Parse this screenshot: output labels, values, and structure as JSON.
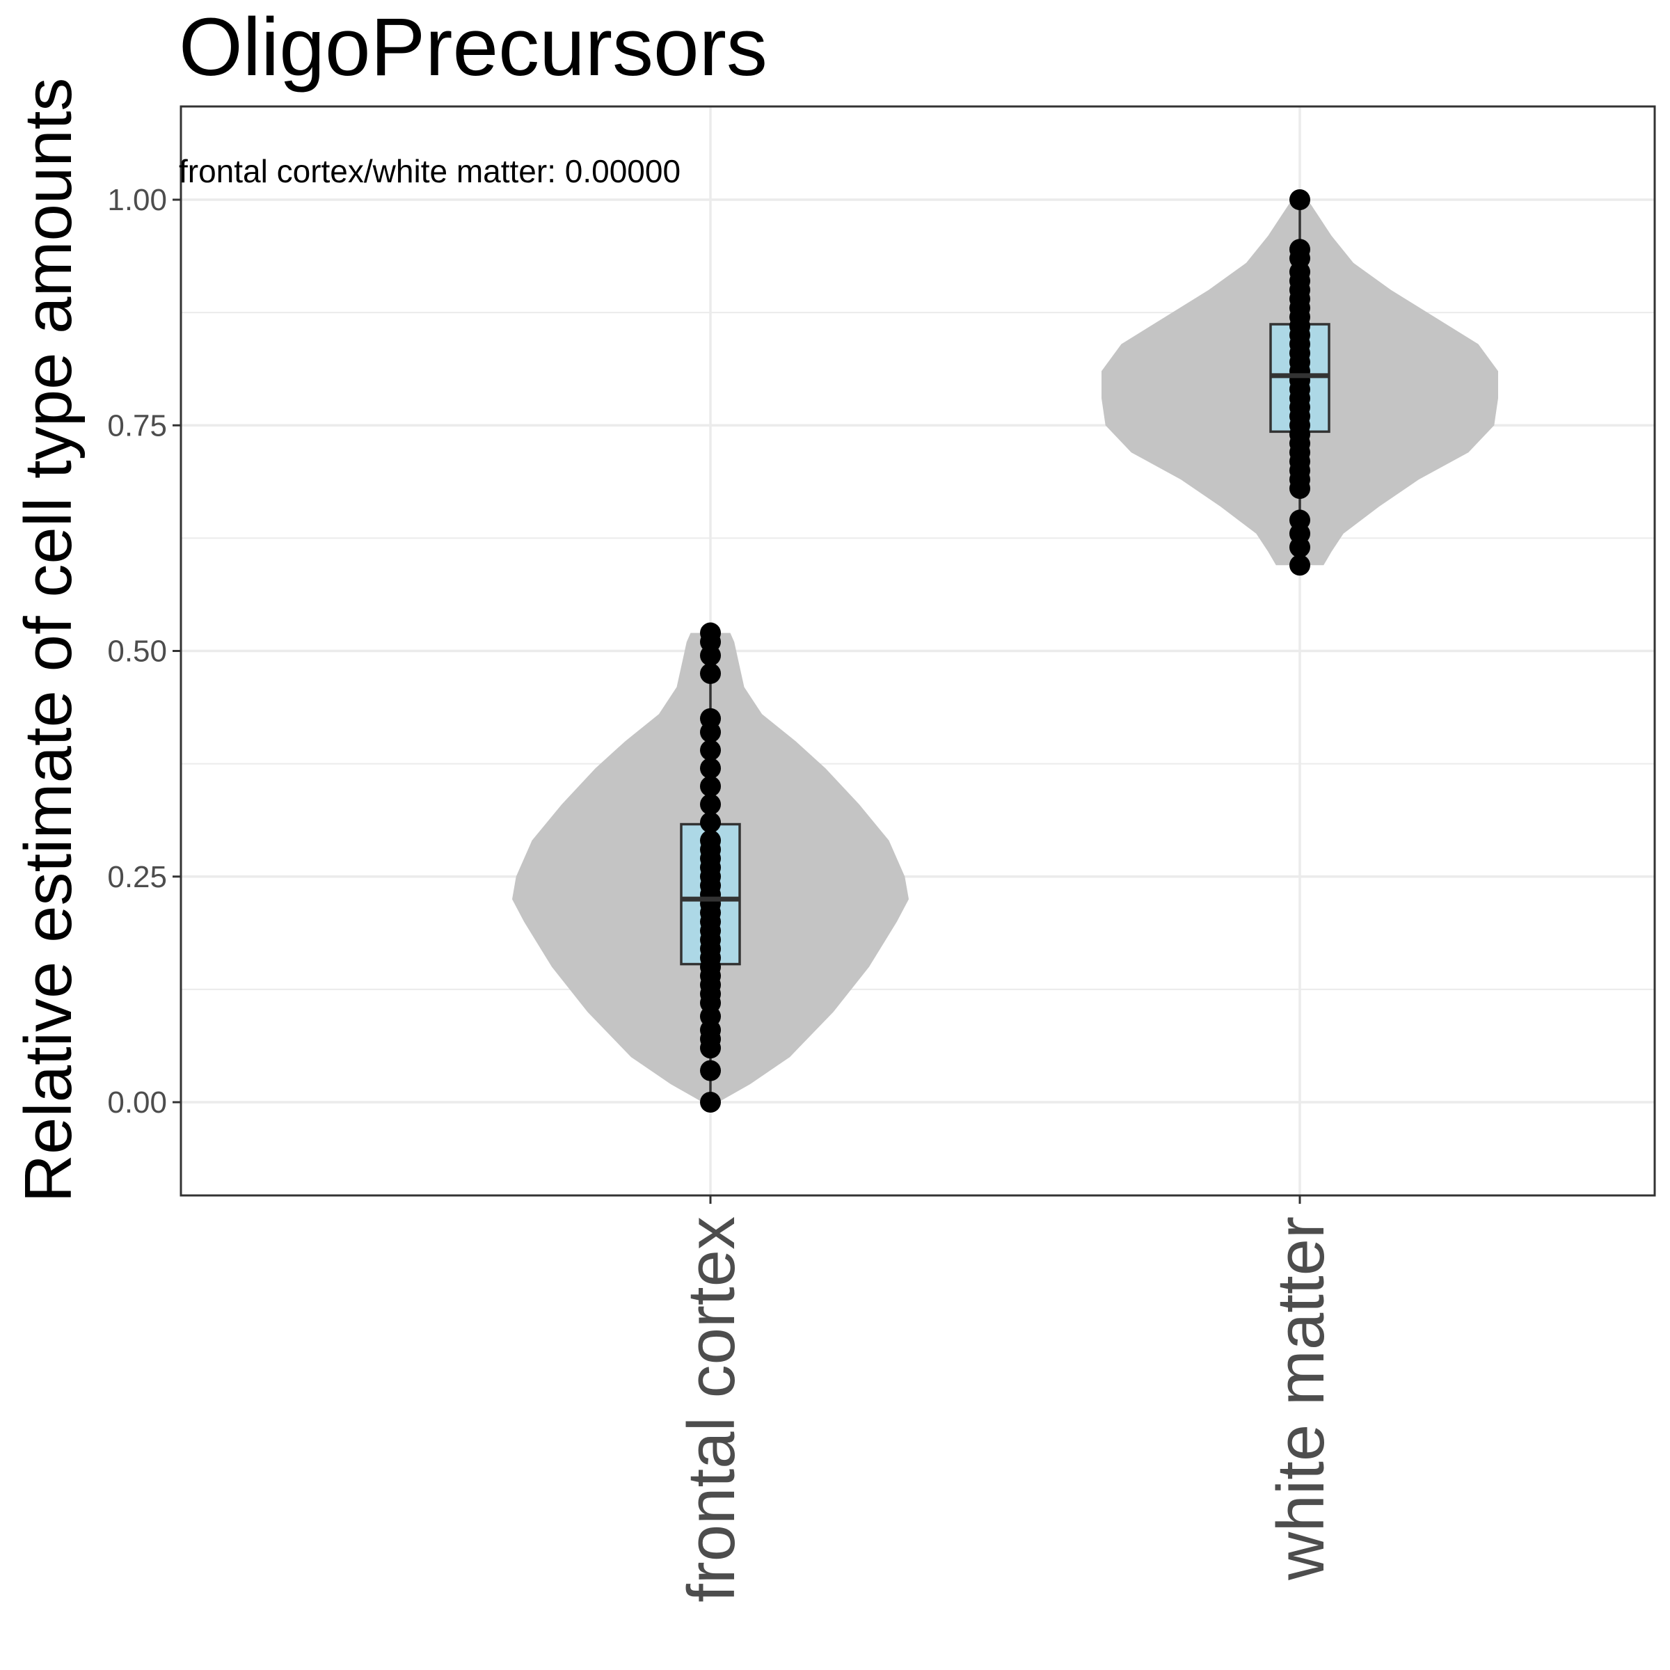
{
  "chart_data": {
    "type": "violin",
    "title": "OligoPrecursors",
    "xlabel": "",
    "ylabel": "Relative estimate of cell type amounts",
    "annotation": "frontal cortex/white matter: 0.00000",
    "categories": [
      "frontal cortex",
      "white matter"
    ],
    "ylim": [
      -0.1,
      1.1
    ],
    "yticks": [
      0.0,
      0.25,
      0.5,
      0.75,
      1.0
    ],
    "ytick_labels": [
      "0.00",
      "0.25",
      "0.50",
      "0.75",
      "1.00"
    ],
    "grid": true,
    "colors": {
      "violin": "#c4c4c4",
      "box": "#add8e6",
      "box_stroke": "#333333",
      "points": "#000000",
      "grid": "#ebebeb",
      "panel_border": "#333333"
    },
    "groups": [
      {
        "name": "frontal cortex",
        "box": {
          "min": 0.0,
          "q1": 0.153,
          "median": 0.225,
          "q3": 0.308,
          "max": 0.52
        },
        "violin_density": [
          [
            0.0,
            0.04
          ],
          [
            0.02,
            0.2
          ],
          [
            0.05,
            0.4
          ],
          [
            0.1,
            0.62
          ],
          [
            0.15,
            0.8
          ],
          [
            0.2,
            0.94
          ],
          [
            0.225,
            1.0
          ],
          [
            0.25,
            0.98
          ],
          [
            0.29,
            0.9
          ],
          [
            0.33,
            0.75
          ],
          [
            0.37,
            0.58
          ],
          [
            0.4,
            0.43
          ],
          [
            0.43,
            0.26
          ],
          [
            0.46,
            0.17
          ],
          [
            0.49,
            0.14
          ],
          [
            0.51,
            0.12
          ],
          [
            0.52,
            0.1
          ]
        ],
        "points": [
          0.0,
          0.035,
          0.06,
          0.07,
          0.08,
          0.095,
          0.11,
          0.12,
          0.13,
          0.14,
          0.15,
          0.16,
          0.17,
          0.18,
          0.19,
          0.2,
          0.21,
          0.22,
          0.23,
          0.24,
          0.25,
          0.26,
          0.27,
          0.28,
          0.29,
          0.31,
          0.33,
          0.35,
          0.37,
          0.39,
          0.41,
          0.425,
          0.475,
          0.495,
          0.51,
          0.52
        ]
      },
      {
        "name": "white matter",
        "box": {
          "min": 0.595,
          "q1": 0.743,
          "median": 0.805,
          "q3": 0.862,
          "max": 1.0
        },
        "violin_density": [
          [
            0.595,
            0.12
          ],
          [
            0.61,
            0.16
          ],
          [
            0.63,
            0.22
          ],
          [
            0.66,
            0.4
          ],
          [
            0.69,
            0.6
          ],
          [
            0.72,
            0.85
          ],
          [
            0.75,
            0.98
          ],
          [
            0.78,
            1.0
          ],
          [
            0.81,
            1.0
          ],
          [
            0.84,
            0.9
          ],
          [
            0.87,
            0.68
          ],
          [
            0.9,
            0.46
          ],
          [
            0.93,
            0.27
          ],
          [
            0.96,
            0.16
          ],
          [
            0.98,
            0.1
          ],
          [
            1.0,
            0.04
          ]
        ],
        "points": [
          0.595,
          0.615,
          0.63,
          0.645,
          0.68,
          0.69,
          0.7,
          0.71,
          0.72,
          0.73,
          0.74,
          0.75,
          0.76,
          0.77,
          0.78,
          0.79,
          0.8,
          0.81,
          0.82,
          0.83,
          0.84,
          0.85,
          0.86,
          0.87,
          0.88,
          0.89,
          0.9,
          0.91,
          0.92,
          0.935,
          0.945,
          1.0
        ]
      }
    ]
  }
}
